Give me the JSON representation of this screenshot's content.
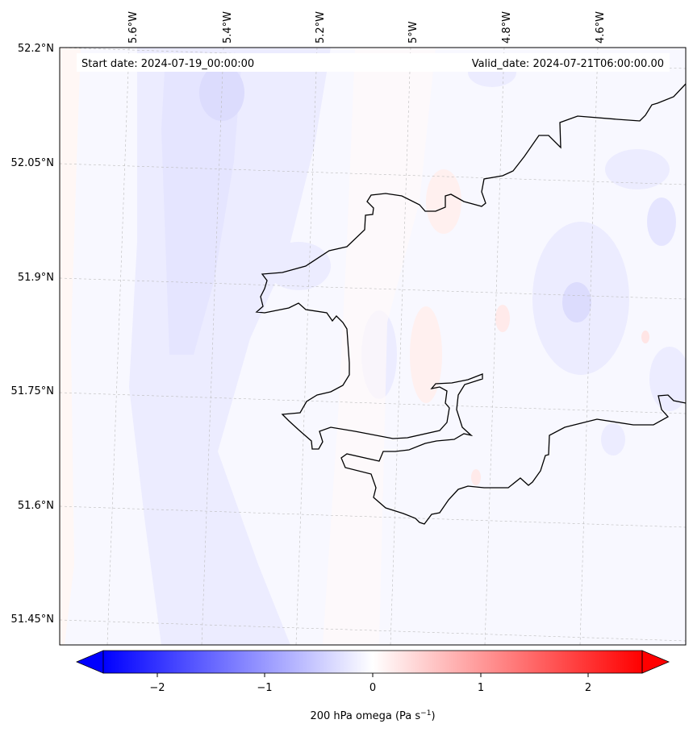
{
  "map": {
    "start_label": "Start date: 2024-07-19_00:00:00",
    "valid_label": "Valid_date: 2024-07-21T06:00:00.00",
    "lon_labels": [
      "5.6°W",
      "5.4°W",
      "5.2°W",
      "5°W",
      "4.8°W",
      "4.6°W"
    ],
    "lat_labels": [
      "52.2°N",
      "52.05°N",
      "51.9°N",
      "51.75°N",
      "51.6°N",
      "51.45°N"
    ]
  },
  "colorbar": {
    "ticks": [
      "−2",
      "−1",
      "0",
      "1",
      "2"
    ],
    "label": "200 hPa omega (Pa s",
    "label_exp": "−1",
    "label_close": ")",
    "range": [
      -2.5,
      2.5
    ],
    "colors": {
      "low": "#0000ff",
      "mid": "#ffffff",
      "high": "#ff0000"
    }
  }
}
